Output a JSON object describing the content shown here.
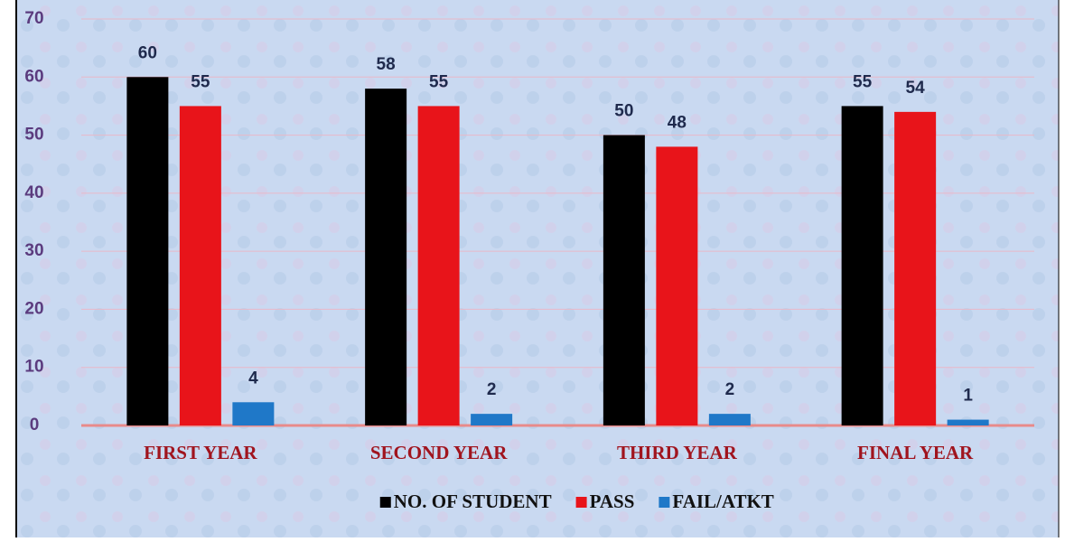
{
  "chart_data": {
    "type": "bar",
    "categories": [
      "FIRST YEAR",
      "SECOND YEAR",
      "THIRD YEAR",
      "FINAL YEAR"
    ],
    "series": [
      {
        "name": "NO. OF STUDENT",
        "color": "#000000",
        "values": [
          60,
          58,
          50,
          55
        ]
      },
      {
        "name": "PASS",
        "color": "#e8141a",
        "values": [
          55,
          55,
          48,
          54
        ]
      },
      {
        "name": "FAIL/ATKT",
        "color": "#1f78c8",
        "values": [
          4,
          2,
          2,
          1
        ]
      }
    ],
    "ylim": [
      0,
      70
    ],
    "yticks": [
      0,
      10,
      20,
      30,
      40,
      50,
      60,
      70
    ],
    "grid": true,
    "legend": "bottom"
  }
}
